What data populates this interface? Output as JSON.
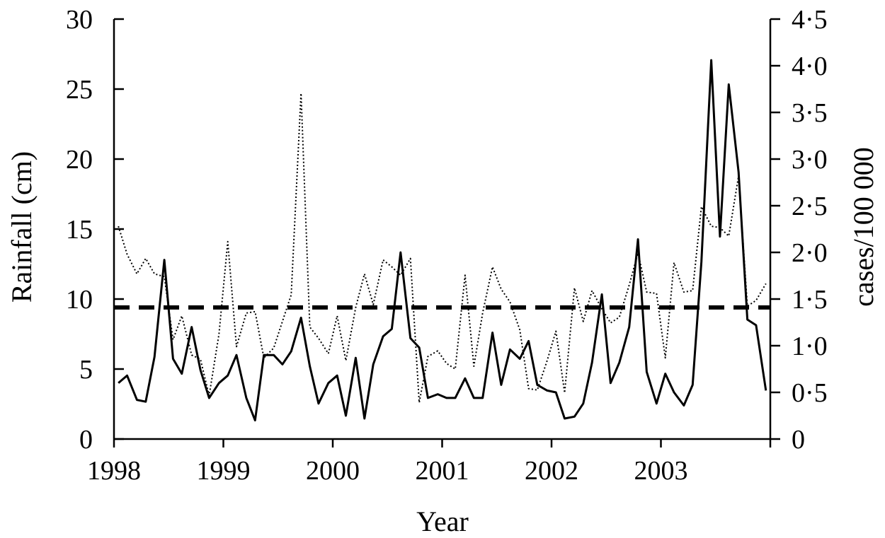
{
  "chart_data": {
    "type": "line",
    "xlabel": "Year",
    "ylabel_left": "Rainfall (cm)",
    "ylabel_right": "cases/100 000",
    "x_ticks": [
      "1998",
      "1999",
      "2000",
      "2001",
      "2002",
      "2003"
    ],
    "y_left_ticks": [
      "0",
      "5",
      "10",
      "15",
      "20",
      "25",
      "30"
    ],
    "y_right_ticks": [
      "0",
      "0·5",
      "1·0",
      "1·5",
      "2·0",
      "2·5",
      "3·0",
      "3·5",
      "4·0",
      "4·5"
    ],
    "xlim": [
      1998,
      2004
    ],
    "ylim_left": [
      0,
      30
    ],
    "ylim_right": [
      0,
      4.5
    ],
    "x": [
      1998.04,
      1998.12,
      1998.21,
      1998.29,
      1998.37,
      1998.46,
      1998.54,
      1998.62,
      1998.71,
      1998.79,
      1998.87,
      1998.96,
      1999.04,
      1999.12,
      1999.21,
      1999.29,
      1999.37,
      1999.46,
      1999.54,
      1999.62,
      1999.71,
      1999.79,
      1999.87,
      1999.96,
      2000.04,
      2000.12,
      2000.21,
      2000.29,
      2000.37,
      2000.46,
      2000.54,
      2000.62,
      2000.71,
      2000.79,
      2000.87,
      2000.96,
      2001.04,
      2001.12,
      2001.21,
      2001.29,
      2001.37,
      2001.46,
      2001.54,
      2001.62,
      2001.71,
      2001.79,
      2001.87,
      2001.96,
      2002.04,
      2002.12,
      2002.21,
      2002.29,
      2002.37,
      2002.46,
      2002.54,
      2002.62,
      2002.71,
      2002.79,
      2002.87,
      2002.96,
      2003.04,
      2003.12,
      2003.21,
      2003.29,
      2003.37,
      2003.46,
      2003.54,
      2003.62,
      2003.71,
      2003.79,
      2003.87,
      2003.96
    ],
    "series": [
      {
        "axis": "right",
        "style": "solid",
        "values": [
          0.6,
          0.68,
          0.42,
          0.4,
          0.88,
          1.92,
          0.86,
          0.7,
          1.2,
          0.74,
          0.44,
          0.6,
          0.68,
          0.9,
          0.44,
          0.2,
          0.9,
          0.9,
          0.8,
          0.94,
          1.3,
          0.78,
          0.38,
          0.6,
          0.68,
          0.25,
          0.87,
          0.22,
          0.8,
          1.1,
          1.18,
          2.0,
          1.08,
          0.98,
          0.44,
          0.48,
          0.44,
          0.44,
          0.65,
          0.44,
          0.44,
          1.14,
          0.58,
          0.96,
          0.86,
          1.05,
          0.58,
          0.52,
          0.5,
          0.22,
          0.24,
          0.38,
          0.82,
          1.55,
          0.6,
          0.82,
          1.2,
          2.14,
          0.72,
          0.38,
          0.7,
          0.5,
          0.36,
          0.58,
          1.9,
          4.06,
          2.17,
          3.8,
          2.86,
          1.28,
          1.22,
          0.52
        ]
      },
      {
        "axis": "left",
        "style": "dotted",
        "values": [
          15.2,
          13.2,
          11.8,
          12.9,
          11.8,
          11.6,
          7.1,
          8.8,
          6.0,
          5.7,
          3.1,
          7.5,
          14.1,
          6.6,
          9.0,
          9.1,
          5.8,
          6.5,
          8.4,
          10.3,
          24.7,
          8.0,
          7.2,
          6.1,
          8.8,
          5.6,
          9.4,
          11.8,
          9.6,
          12.8,
          12.3,
          11.7,
          12.9,
          2.6,
          5.9,
          6.3,
          5.4,
          5.0,
          11.7,
          5.2,
          9.0,
          12.3,
          10.7,
          9.8,
          7.8,
          3.6,
          3.5,
          5.6,
          7.7,
          3.3,
          10.8,
          8.4,
          10.6,
          9.3,
          8.3,
          8.7,
          11.0,
          13.3,
          10.5,
          10.4,
          5.8,
          12.6,
          10.5,
          10.6,
          16.6,
          15.2,
          15.1,
          14.5,
          18.8,
          9.5,
          9.9,
          11.1
        ]
      }
    ],
    "reference_line": {
      "axis": "left",
      "y": 9.4,
      "style": "dashed"
    }
  }
}
